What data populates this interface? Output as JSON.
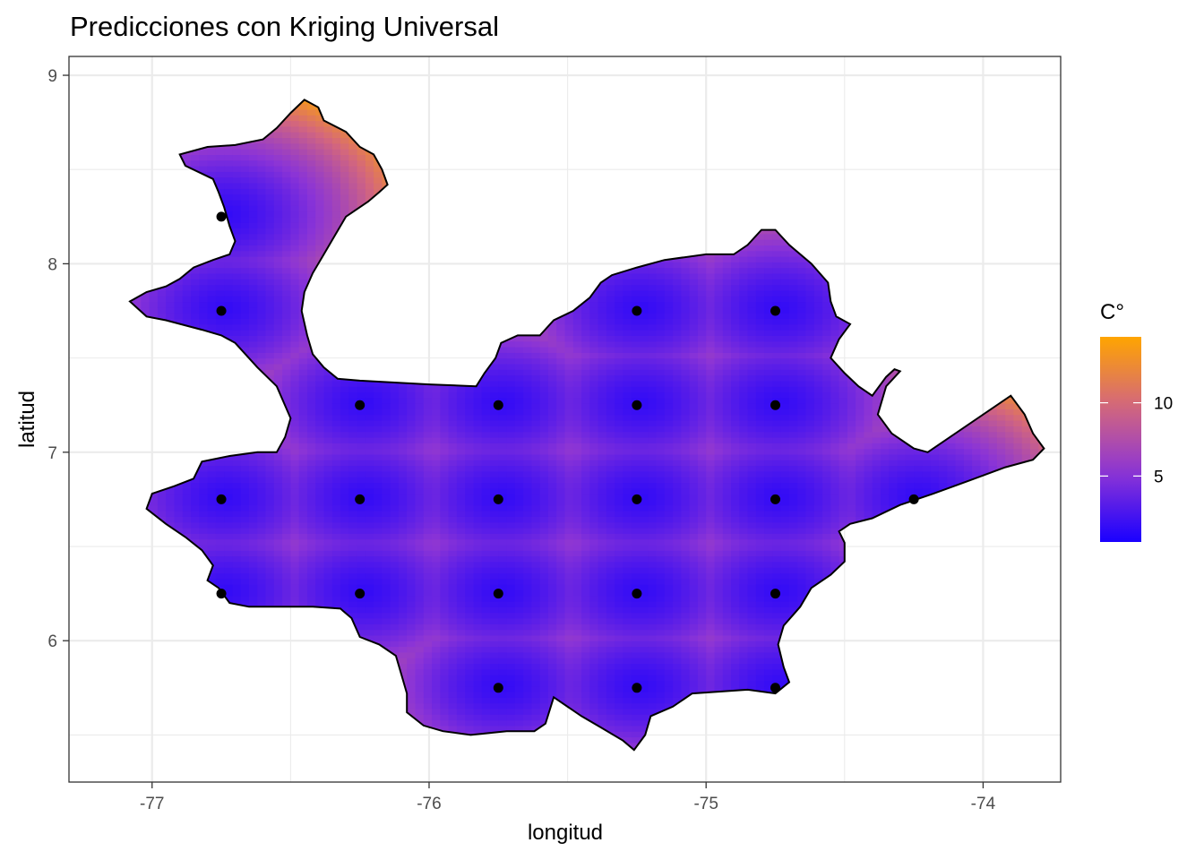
{
  "chart_data": {
    "type": "heatmap",
    "title": "Predicciones con Kriging Universal",
    "xlabel": "longitud",
    "ylabel": "latitud",
    "xlim": [
      -77.3,
      -73.72
    ],
    "ylim": [
      5.25,
      9.1
    ],
    "x_ticks": [
      -77,
      -76,
      -75,
      -74
    ],
    "y_ticks": [
      6,
      7,
      8,
      9
    ],
    "x_tick_labels": [
      "-77",
      "-76",
      "-75",
      "-74"
    ],
    "y_tick_labels": [
      "6",
      "7",
      "8",
      "9"
    ],
    "grid": true,
    "legend": {
      "title": "C°",
      "placement": "right",
      "range": [
        0.5,
        14.5
      ],
      "ticks": [
        5,
        10
      ],
      "tick_labels": [
        "5",
        "10"
      ],
      "colors": [
        "#1a00ff",
        "#8b34d6",
        "#d4677c",
        "#ffa500"
      ]
    },
    "colors": {
      "low": "#1a00ff",
      "mid": "#8b34d6",
      "high": "#ffa500",
      "points": "#000000",
      "border": "#000000",
      "grid": "#ebebeb"
    },
    "stations": [
      {
        "lon": -76.75,
        "lat": 8.25
      },
      {
        "lon": -76.75,
        "lat": 7.75
      },
      {
        "lon": -75.25,
        "lat": 7.75
      },
      {
        "lon": -74.75,
        "lat": 7.75
      },
      {
        "lon": -76.25,
        "lat": 7.25
      },
      {
        "lon": -75.75,
        "lat": 7.25
      },
      {
        "lon": -75.25,
        "lat": 7.25
      },
      {
        "lon": -74.75,
        "lat": 7.25
      },
      {
        "lon": -76.75,
        "lat": 6.75
      },
      {
        "lon": -76.25,
        "lat": 6.75
      },
      {
        "lon": -75.75,
        "lat": 6.75
      },
      {
        "lon": -75.25,
        "lat": 6.75
      },
      {
        "lon": -74.75,
        "lat": 6.75
      },
      {
        "lon": -74.25,
        "lat": 6.75
      },
      {
        "lon": -76.75,
        "lat": 6.25
      },
      {
        "lon": -76.25,
        "lat": 6.25
      },
      {
        "lon": -75.75,
        "lat": 6.25
      },
      {
        "lon": -75.25,
        "lat": 6.25
      },
      {
        "lon": -74.75,
        "lat": 6.25
      },
      {
        "lon": -75.75,
        "lat": 5.75
      },
      {
        "lon": -75.25,
        "lat": 5.75
      },
      {
        "lon": -74.75,
        "lat": 5.75
      }
    ],
    "region_boundary": [
      [
        -76.45,
        8.87
      ],
      [
        -76.4,
        8.83
      ],
      [
        -76.38,
        8.76
      ],
      [
        -76.3,
        8.7
      ],
      [
        -76.25,
        8.62
      ],
      [
        -76.2,
        8.58
      ],
      [
        -76.17,
        8.5
      ],
      [
        -76.15,
        8.42
      ],
      [
        -76.18,
        8.38
      ],
      [
        -76.22,
        8.33
      ],
      [
        -76.3,
        8.25
      ],
      [
        -76.34,
        8.15
      ],
      [
        -76.38,
        8.05
      ],
      [
        -76.42,
        7.95
      ],
      [
        -76.45,
        7.85
      ],
      [
        -76.46,
        7.75
      ],
      [
        -76.44,
        7.62
      ],
      [
        -76.42,
        7.52
      ],
      [
        -76.38,
        7.45
      ],
      [
        -76.33,
        7.39
      ],
      [
        -76.25,
        7.38
      ],
      [
        -76.0,
        7.36
      ],
      [
        -75.83,
        7.35
      ],
      [
        -75.8,
        7.42
      ],
      [
        -75.76,
        7.5
      ],
      [
        -75.74,
        7.58
      ],
      [
        -75.68,
        7.62
      ],
      [
        -75.6,
        7.62
      ],
      [
        -75.55,
        7.7
      ],
      [
        -75.48,
        7.75
      ],
      [
        -75.42,
        7.82
      ],
      [
        -75.38,
        7.9
      ],
      [
        -75.34,
        7.94
      ],
      [
        -75.25,
        7.98
      ],
      [
        -75.15,
        8.02
      ],
      [
        -75.0,
        8.05
      ],
      [
        -74.9,
        8.05
      ],
      [
        -74.85,
        8.1
      ],
      [
        -74.8,
        8.18
      ],
      [
        -74.75,
        8.18
      ],
      [
        -74.7,
        8.1
      ],
      [
        -74.62,
        8.0
      ],
      [
        -74.56,
        7.9
      ],
      [
        -74.55,
        7.8
      ],
      [
        -74.53,
        7.72
      ],
      [
        -74.48,
        7.68
      ],
      [
        -74.52,
        7.6
      ],
      [
        -74.55,
        7.5
      ],
      [
        -74.5,
        7.42
      ],
      [
        -74.45,
        7.35
      ],
      [
        -74.4,
        7.3
      ],
      [
        -74.35,
        7.4
      ],
      [
        -74.32,
        7.44
      ],
      [
        -74.3,
        7.43
      ],
      [
        -74.35,
        7.35
      ],
      [
        -74.38,
        7.2
      ],
      [
        -74.33,
        7.1
      ],
      [
        -74.25,
        7.02
      ],
      [
        -74.2,
        7.0
      ],
      [
        -73.9,
        7.3
      ],
      [
        -73.85,
        7.2
      ],
      [
        -73.82,
        7.1
      ],
      [
        -73.78,
        7.02
      ],
      [
        -73.82,
        6.96
      ],
      [
        -73.92,
        6.92
      ],
      [
        -74.05,
        6.85
      ],
      [
        -74.18,
        6.78
      ],
      [
        -74.3,
        6.72
      ],
      [
        -74.4,
        6.65
      ],
      [
        -74.48,
        6.62
      ],
      [
        -74.52,
        6.58
      ],
      [
        -74.5,
        6.52
      ],
      [
        -74.5,
        6.42
      ],
      [
        -74.55,
        6.35
      ],
      [
        -74.62,
        6.28
      ],
      [
        -74.66,
        6.18
      ],
      [
        -74.72,
        6.08
      ],
      [
        -74.74,
        5.98
      ],
      [
        -74.72,
        5.86
      ],
      [
        -74.7,
        5.78
      ],
      [
        -74.75,
        5.72
      ],
      [
        -74.85,
        5.74
      ],
      [
        -74.95,
        5.73
      ],
      [
        -75.05,
        5.72
      ],
      [
        -75.12,
        5.65
      ],
      [
        -75.2,
        5.6
      ],
      [
        -75.22,
        5.5
      ],
      [
        -75.26,
        5.42
      ],
      [
        -75.3,
        5.47
      ],
      [
        -75.38,
        5.54
      ],
      [
        -75.45,
        5.6
      ],
      [
        -75.55,
        5.7
      ],
      [
        -75.58,
        5.56
      ],
      [
        -75.62,
        5.52
      ],
      [
        -75.72,
        5.52
      ],
      [
        -75.85,
        5.5
      ],
      [
        -75.95,
        5.52
      ],
      [
        -76.02,
        5.55
      ],
      [
        -76.08,
        5.62
      ],
      [
        -76.08,
        5.72
      ],
      [
        -76.1,
        5.82
      ],
      [
        -76.12,
        5.92
      ],
      [
        -76.18,
        5.98
      ],
      [
        -76.25,
        6.02
      ],
      [
        -76.28,
        6.12
      ],
      [
        -76.32,
        6.17
      ],
      [
        -76.42,
        6.18
      ],
      [
        -76.55,
        6.18
      ],
      [
        -76.65,
        6.18
      ],
      [
        -76.72,
        6.2
      ],
      [
        -76.76,
        6.28
      ],
      [
        -76.8,
        6.32
      ],
      [
        -76.78,
        6.4
      ],
      [
        -76.82,
        6.48
      ],
      [
        -76.88,
        6.55
      ],
      [
        -76.95,
        6.62
      ],
      [
        -77.02,
        6.7
      ],
      [
        -77.0,
        6.78
      ],
      [
        -76.92,
        6.82
      ],
      [
        -76.85,
        6.86
      ],
      [
        -76.82,
        6.95
      ],
      [
        -76.72,
        6.98
      ],
      [
        -76.62,
        7.0
      ],
      [
        -76.55,
        7.0
      ],
      [
        -76.52,
        7.08
      ],
      [
        -76.5,
        7.18
      ],
      [
        -76.55,
        7.35
      ],
      [
        -76.62,
        7.45
      ],
      [
        -76.7,
        7.58
      ],
      [
        -76.75,
        7.62
      ],
      [
        -76.82,
        7.65
      ],
      [
        -76.95,
        7.7
      ],
      [
        -77.02,
        7.72
      ],
      [
        -77.08,
        7.8
      ],
      [
        -77.02,
        7.85
      ],
      [
        -76.95,
        7.88
      ],
      [
        -76.9,
        7.92
      ],
      [
        -76.85,
        7.98
      ],
      [
        -76.78,
        8.02
      ],
      [
        -76.72,
        8.05
      ],
      [
        -76.7,
        8.12
      ],
      [
        -76.72,
        8.2
      ],
      [
        -76.74,
        8.3
      ],
      [
        -76.76,
        8.38
      ],
      [
        -76.78,
        8.45
      ],
      [
        -76.88,
        8.52
      ],
      [
        -76.9,
        8.58
      ],
      [
        -76.8,
        8.62
      ],
      [
        -76.7,
        8.63
      ],
      [
        -76.6,
        8.66
      ],
      [
        -76.55,
        8.72
      ],
      [
        -76.5,
        8.8
      ]
    ]
  }
}
